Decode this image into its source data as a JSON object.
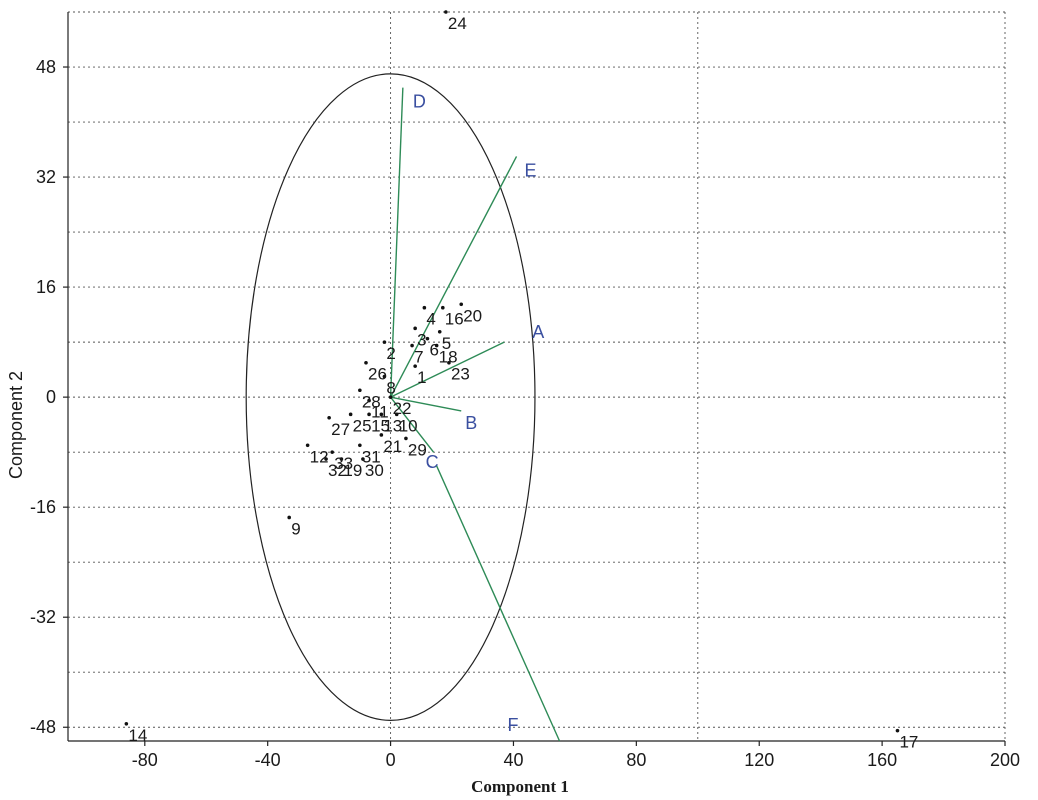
{
  "chart_data": {
    "type": "scatter",
    "title": "",
    "xlabel": "Component 1",
    "ylabel": "Component 2",
    "xlim": [
      -105,
      200
    ],
    "ylim": [
      -50,
      56
    ],
    "xticks": [
      -80,
      -40,
      0,
      40,
      80,
      120,
      160,
      200
    ],
    "yticks": [
      -48,
      -32,
      -16,
      0,
      16,
      32,
      48
    ],
    "grid": true,
    "circle_radius": 47,
    "points": [
      {
        "label": "1",
        "x": 8,
        "y": 4.5
      },
      {
        "label": "2",
        "x": -2,
        "y": 8
      },
      {
        "label": "3",
        "x": 8,
        "y": 10
      },
      {
        "label": "4",
        "x": 11,
        "y": 13
      },
      {
        "label": "5",
        "x": 16,
        "y": 9.5
      },
      {
        "label": "6",
        "x": 12,
        "y": 8.5
      },
      {
        "label": "7",
        "x": 7,
        "y": 7.5
      },
      {
        "label": "8",
        "x": -2,
        "y": 3
      },
      {
        "label": "9",
        "x": -33,
        "y": -17.5
      },
      {
        "label": "10",
        "x": 2,
        "y": -2.5
      },
      {
        "label": "11",
        "x": -7,
        "y": -0.5
      },
      {
        "label": "12",
        "x": -27,
        "y": -7
      },
      {
        "label": "13",
        "x": -3,
        "y": -2.5
      },
      {
        "label": "14",
        "x": -86,
        "y": -47.5
      },
      {
        "label": "15",
        "x": -7,
        "y": -2.5
      },
      {
        "label": "16",
        "x": 17,
        "y": 13
      },
      {
        "label": "17",
        "x": 165,
        "y": -48.5
      },
      {
        "label": "18",
        "x": 15,
        "y": 7.5
      },
      {
        "label": "19",
        "x": -16,
        "y": -9
      },
      {
        "label": "20",
        "x": 23,
        "y": 13.5
      },
      {
        "label": "21",
        "x": -3,
        "y": -5.5
      },
      {
        "label": "22",
        "x": 0,
        "y": 0
      },
      {
        "label": "23",
        "x": 19,
        "y": 5
      },
      {
        "label": "24",
        "x": 18,
        "y": 56
      },
      {
        "label": "25",
        "x": -13,
        "y": -2.5
      },
      {
        "label": "26",
        "x": -8,
        "y": 5
      },
      {
        "label": "27",
        "x": -20,
        "y": -3
      },
      {
        "label": "28",
        "x": -10,
        "y": 1
      },
      {
        "label": "29",
        "x": 5,
        "y": -6
      },
      {
        "label": "30",
        "x": -9,
        "y": -9
      },
      {
        "label": "31",
        "x": -10,
        "y": -7
      },
      {
        "label": "32",
        "x": -21,
        "y": -9
      },
      {
        "label": "33",
        "x": -19,
        "y": -8
      }
    ],
    "vectors": [
      {
        "label": "A",
        "x": 37,
        "y": 8
      },
      {
        "label": "B",
        "x": 23,
        "y": -2
      },
      {
        "label": "C",
        "x": 14,
        "y": -8
      },
      {
        "label": "D",
        "x": 4,
        "y": 45
      },
      {
        "label": "E",
        "x": 41,
        "y": 35
      },
      {
        "label": "F",
        "x": 55,
        "y": -50
      }
    ]
  }
}
